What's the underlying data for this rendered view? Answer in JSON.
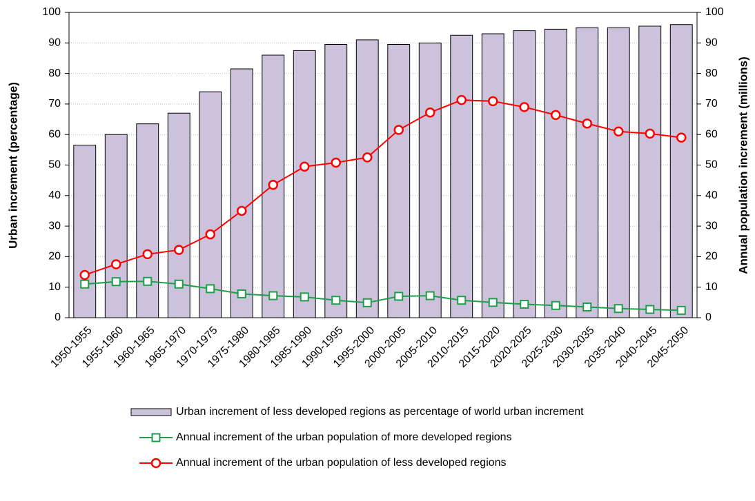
{
  "chart_data": {
    "type": "bar",
    "y_label": "Urban increment (percentage)",
    "y2_label": "Annual population increment (millions)",
    "categories": [
      "1950-1955",
      "1955-1960",
      "1960-1965",
      "1965-1970",
      "1970-1975",
      "1975-1980",
      "1980-1985",
      "1985-1990",
      "1990-1995",
      "1995-2000",
      "2000-2005",
      "2005-2010",
      "2010-2015",
      "2015-2020",
      "2020-2025",
      "2025-2030",
      "2030-2035",
      "2035-2040",
      "2040-2045",
      "2045-2050"
    ],
    "series": [
      {
        "name": "Urban increment of less developed regions as percentage of world urban increment",
        "type": "bar",
        "color": "#ccc2dc",
        "values": [
          56.5,
          60,
          63.5,
          67,
          74,
          81.5,
          86,
          87.5,
          89.5,
          91,
          89.5,
          90,
          92.5,
          93,
          94,
          94.5,
          95,
          95,
          95.5,
          96
        ]
      },
      {
        "name": "Annual increment of the urban population of more developed regions",
        "type": "line",
        "axis": "y2",
        "color": "#1f9e4a",
        "marker": "square",
        "values": [
          11,
          11.8,
          11.9,
          11,
          9.5,
          7.8,
          7.2,
          6.8,
          5.7,
          4.9,
          7,
          7.2,
          5.7,
          5,
          4.4,
          4,
          3.5,
          3,
          2.7,
          2.4
        ]
      },
      {
        "name": "Annual increment of the urban population of less developed regions",
        "type": "line",
        "axis": "y2",
        "color": "#ff0000",
        "marker": "circle",
        "values": [
          14,
          17.5,
          20.8,
          22.2,
          27.3,
          35,
          43.5,
          49.5,
          50.8,
          52.5,
          61.5,
          67.2,
          71.3,
          70.9,
          69,
          66.4,
          63.6,
          61,
          60.3,
          59
        ]
      }
    ],
    "ylim": [
      0,
      100
    ],
    "yticks": [
      0,
      10,
      20,
      30,
      40,
      50,
      60,
      70,
      80,
      90,
      100
    ],
    "y2lim": [
      0,
      100
    ],
    "y2ticks": [
      0,
      10,
      20,
      30,
      40,
      50,
      60,
      70,
      80,
      90,
      100
    ],
    "grid": true
  }
}
